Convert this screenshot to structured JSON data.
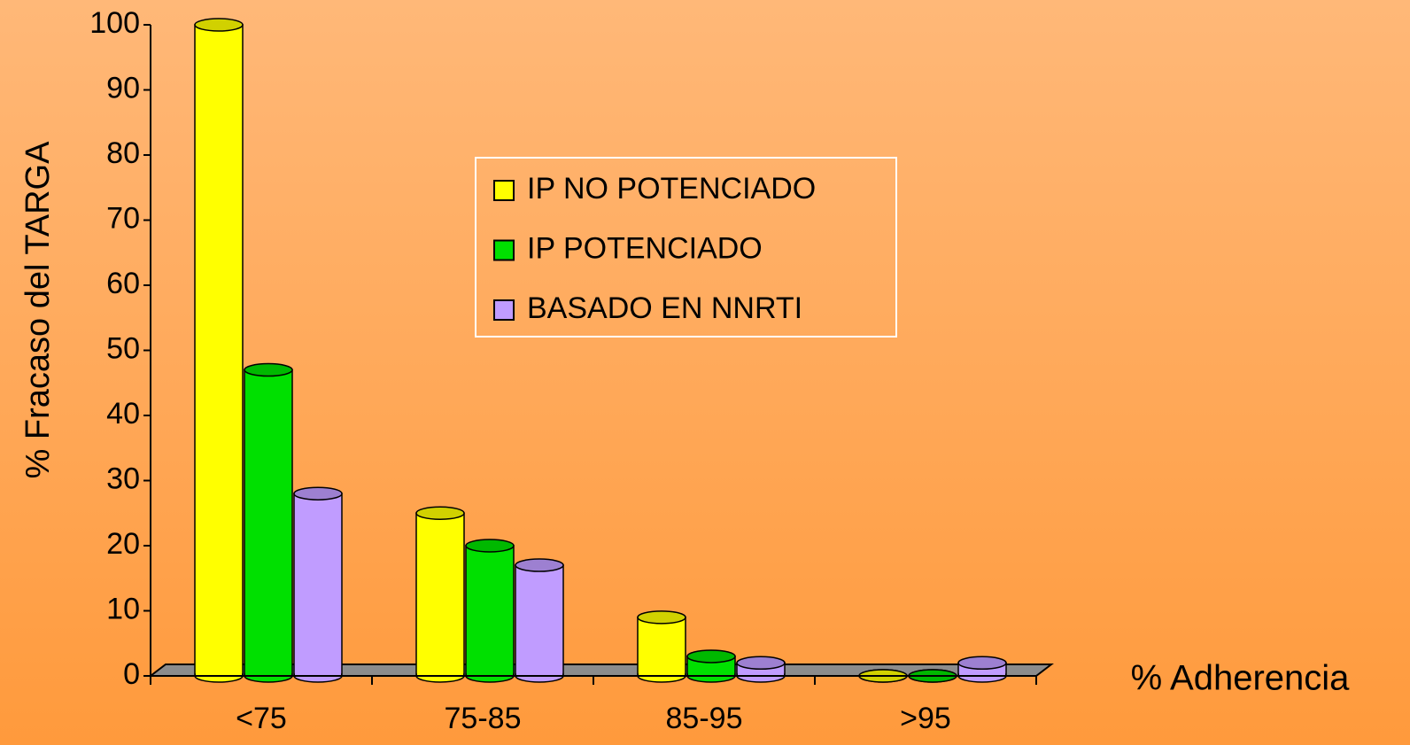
{
  "chart_data": {
    "type": "bar",
    "x_label": "% Adherencia",
    "y_label": "% Fracaso del TARGA",
    "categories": [
      "<75",
      "75-85",
      "85-95",
      ">95"
    ],
    "series": [
      {
        "name": "IP NO POTENCIADO",
        "color": "#ffff00",
        "values": [
          100,
          25,
          9,
          0
        ]
      },
      {
        "name": "IP POTENCIADO",
        "color": "#00e000",
        "values": [
          47,
          20,
          3,
          0
        ]
      },
      {
        "name": "BASADO EN NNRTI",
        "color": "#c09cff",
        "values": [
          28,
          17,
          2,
          2
        ]
      }
    ],
    "ylim": [
      0,
      100
    ],
    "yticks": [
      0,
      10,
      20,
      30,
      40,
      50,
      60,
      70,
      80,
      90,
      100
    ]
  }
}
